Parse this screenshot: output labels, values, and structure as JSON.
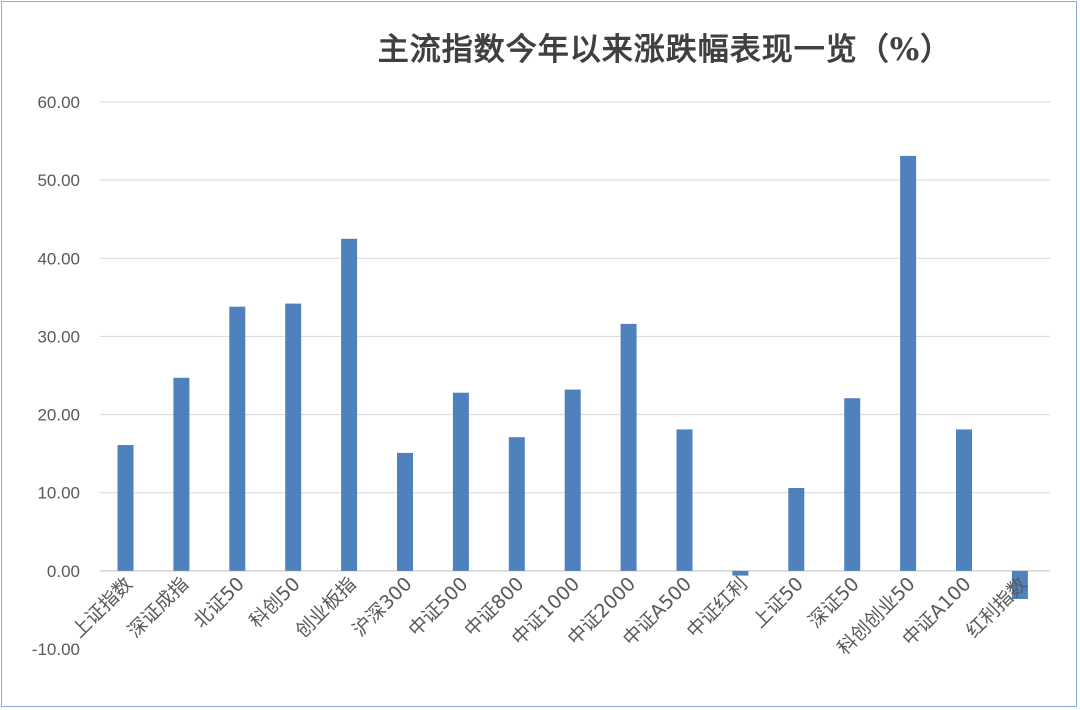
{
  "chart_data": {
    "type": "bar",
    "title": "主流指数今年以来涨跌幅表现一览（%）",
    "categories": [
      "上证指数",
      "深证成指",
      "北证50",
      "科创50",
      "创业板指",
      "沪深300",
      "中证500",
      "中证800",
      "中证1000",
      "中证2000",
      "中证A500",
      "中证红利",
      "上证50",
      "深证50",
      "科创创业50",
      "中证A100",
      "红利指数"
    ],
    "values": [
      16.1,
      24.7,
      33.8,
      34.2,
      42.5,
      15.1,
      22.8,
      17.1,
      23.2,
      31.6,
      18.1,
      -0.6,
      10.6,
      22.1,
      53.1,
      18.1,
      -3.6
    ],
    "ylim": [
      -10,
      60
    ],
    "yticks": [
      "60.00",
      "50.00",
      "40.00",
      "30.00",
      "20.00",
      "10.00",
      "0.00",
      "-10.00"
    ],
    "grid": true,
    "colors": {
      "bar": "#4f81bd",
      "grid": "#d9d9d9",
      "axis_text": "#595959",
      "title": "#404040",
      "border": "#8eaad6"
    }
  }
}
